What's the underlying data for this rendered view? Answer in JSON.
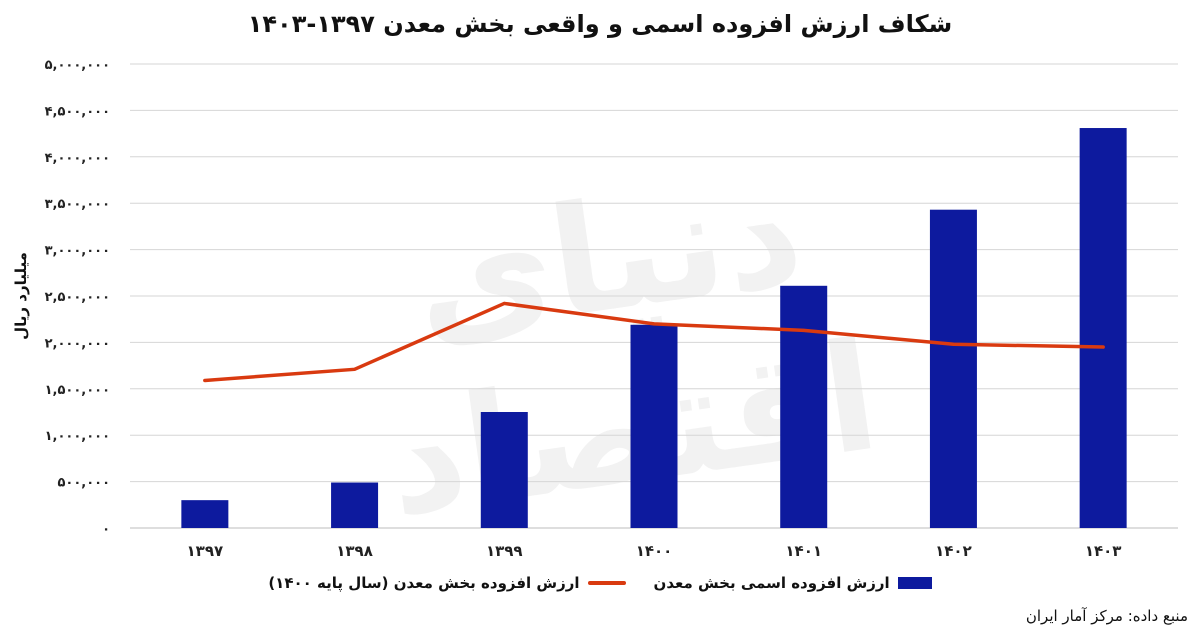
{
  "title": "شکاف ارزش افزوده اسمی و واقعی بخش معدن ۱۳۹۷-۱۴۰۳",
  "source": "منبع داده: مرکز آمار ایران",
  "watermark": "دنیای اقتصاد",
  "colors": {
    "bar": "#0d1a9e",
    "line": "#d93a10",
    "grid": "#d6d6d6"
  },
  "chart_data": {
    "type": "bar",
    "title": "شکاف ارزش افزوده اسمی و واقعی بخش معدن ۱۳۹۷-۱۴۰۳",
    "ylabel": "میلیارد ریال",
    "xlabel": "",
    "ylim": [
      0,
      5000000
    ],
    "grid": true,
    "legend_position": "bottom",
    "categories": [
      "۱۳۹۷",
      "۱۳۹۸",
      "۱۳۹۹",
      "۱۴۰۰",
      "۱۴۰۱",
      "۱۴۰۲",
      "۱۴۰۳"
    ],
    "y_ticks": [
      0,
      500000,
      1000000,
      1500000,
      2000000,
      2500000,
      3000000,
      3500000,
      4000000,
      4500000,
      5000000
    ],
    "y_tick_labels": [
      "۰",
      "۵۰۰,۰۰۰",
      "۱,۰۰۰,۰۰۰",
      "۱,۵۰۰,۰۰۰",
      "۲,۰۰۰,۰۰۰",
      "۲,۵۰۰,۰۰۰",
      "۳,۰۰۰,۰۰۰",
      "۳,۵۰۰,۰۰۰",
      "۴,۰۰۰,۰۰۰",
      "۴,۵۰۰,۰۰۰",
      "۵,۰۰۰,۰۰۰"
    ],
    "series": [
      {
        "name": "ارزش افزوده اسمی بخش معدن",
        "type": "bar",
        "values": [
          300000,
          490000,
          1250000,
          2190000,
          2610000,
          3430000,
          4310000
        ]
      },
      {
        "name": "ارزش افزوده بخش معدن (سال پایه ۱۴۰۰)",
        "type": "line",
        "values": [
          1590000,
          1710000,
          2420000,
          2200000,
          2130000,
          1980000,
          1950000
        ]
      }
    ]
  }
}
